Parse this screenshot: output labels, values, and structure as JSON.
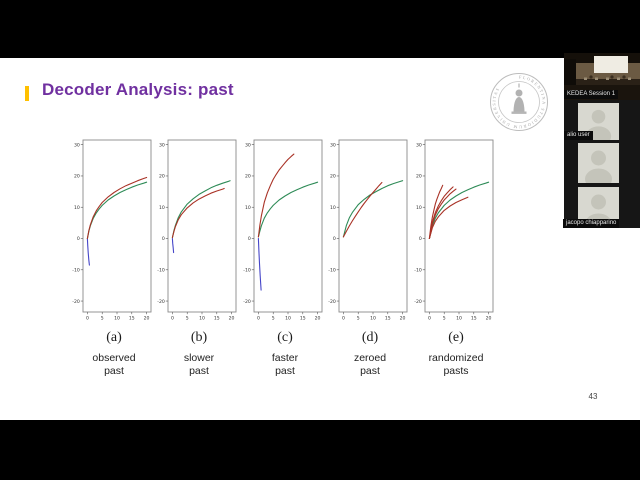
{
  "slide": {
    "title": "Decoder Analysis: past",
    "title_color": "#7030a0",
    "accent_color": "#ffc000",
    "page_number": "43",
    "seal_text": "FLORENTINA STUDIORUM UNIVERSITAS"
  },
  "sidebar": {
    "main_video_label": "KEDEA Session 1",
    "participants": [
      {
        "name": "alio user"
      },
      {
        "name": ""
      },
      {
        "name": "jacopo chiapparino"
      }
    ]
  },
  "chart_data": [
    {
      "type": "line",
      "label": "(a)",
      "caption_line1": "observed",
      "caption_line2": "past",
      "xlim": [
        0,
        20
      ],
      "ylim": [
        -20,
        30
      ],
      "xticks": [
        0,
        5,
        10,
        15,
        20
      ],
      "yticks": [
        30,
        20,
        10,
        0,
        -10,
        -20
      ],
      "series": [
        {
          "name": "blue",
          "color": "#4545c8",
          "points": [
            [
              0,
              0
            ],
            [
              0.1,
              -2
            ],
            [
              0.25,
              -4.5
            ],
            [
              0.45,
              -6.8
            ],
            [
              0.65,
              -8.5
            ]
          ]
        },
        {
          "name": "green",
          "color": "#2e8b57",
          "points": [
            [
              0,
              0
            ],
            [
              0.5,
              2.4
            ],
            [
              1,
              4.1
            ],
            [
              2,
              6.5
            ],
            [
              3,
              8.2
            ],
            [
              4,
              9.5
            ],
            [
              5,
              10.6
            ],
            [
              7,
              12.3
            ],
            [
              9,
              13.6
            ],
            [
              11,
              14.7
            ],
            [
              13,
              15.6
            ],
            [
              15,
              16.4
            ],
            [
              17,
              17.1
            ],
            [
              19,
              17.7
            ],
            [
              20,
              18
            ]
          ]
        },
        {
          "name": "red",
          "color": "#a93226",
          "points": [
            [
              0,
              0
            ],
            [
              0.5,
              2.6
            ],
            [
              1,
              4.4
            ],
            [
              2,
              7
            ],
            [
              3,
              8.9
            ],
            [
              4,
              10.3
            ],
            [
              5,
              11.5
            ],
            [
              7,
              13.3
            ],
            [
              9,
              14.7
            ],
            [
              11,
              15.9
            ],
            [
              13,
              16.9
            ],
            [
              15,
              17.7
            ],
            [
              17,
              18.5
            ],
            [
              19,
              19.2
            ],
            [
              20,
              19.5
            ]
          ]
        }
      ]
    },
    {
      "type": "line",
      "label": "(b)",
      "caption_line1": "slower",
      "caption_line2": "past",
      "xlim": [
        0,
        20
      ],
      "ylim": [
        -20,
        30
      ],
      "xticks": [
        0,
        5,
        10,
        15,
        20
      ],
      "yticks": [
        30,
        20,
        10,
        0,
        -10,
        -20
      ],
      "series": [
        {
          "name": "blue",
          "color": "#4545c8",
          "points": [
            [
              0,
              0
            ],
            [
              0.1,
              -1.5
            ],
            [
              0.25,
              -3
            ],
            [
              0.4,
              -4.5
            ]
          ]
        },
        {
          "name": "green",
          "color": "#2e8b57",
          "points": [
            [
              0,
              0.3
            ],
            [
              0.5,
              2.5
            ],
            [
              1,
              4.2
            ],
            [
              2,
              6.7
            ],
            [
              3,
              8.5
            ],
            [
              5,
              11
            ],
            [
              7,
              12.7
            ],
            [
              9,
              14.1
            ],
            [
              11,
              15.2
            ],
            [
              13,
              16.2
            ],
            [
              15,
              17
            ],
            [
              17,
              17.7
            ],
            [
              19,
              18.3
            ],
            [
              19.5,
              18.5
            ]
          ]
        },
        {
          "name": "red",
          "color": "#a93226",
          "points": [
            [
              0,
              0.3
            ],
            [
              0.5,
              2.2
            ],
            [
              1,
              3.8
            ],
            [
              2,
              6
            ],
            [
              3,
              7.6
            ],
            [
              5,
              9.8
            ],
            [
              7,
              11.4
            ],
            [
              9,
              12.6
            ],
            [
              11,
              13.6
            ],
            [
              13,
              14.5
            ],
            [
              15,
              15.2
            ],
            [
              17,
              15.8
            ],
            [
              17.5,
              16
            ]
          ]
        }
      ]
    },
    {
      "type": "line",
      "label": "(c)",
      "caption_line1": "faster",
      "caption_line2": "past",
      "xlim": [
        0,
        20
      ],
      "ylim": [
        -20,
        30
      ],
      "xticks": [
        0,
        5,
        10,
        15,
        20
      ],
      "yticks": [
        30,
        20,
        10,
        0,
        -10,
        -20
      ],
      "series": [
        {
          "name": "blue",
          "color": "#4545c8",
          "points": [
            [
              0,
              0
            ],
            [
              0.15,
              -4
            ],
            [
              0.35,
              -8
            ],
            [
              0.6,
              -12
            ],
            [
              0.9,
              -16.5
            ]
          ]
        },
        {
          "name": "green",
          "color": "#2e8b57",
          "points": [
            [
              0,
              0.5
            ],
            [
              0.5,
              2.4
            ],
            [
              1,
              4.1
            ],
            [
              2,
              6.5
            ],
            [
              3,
              8.2
            ],
            [
              4,
              9.5
            ],
            [
              5,
              10.6
            ],
            [
              7,
              12.3
            ],
            [
              9,
              13.6
            ],
            [
              11,
              14.7
            ],
            [
              13,
              15.6
            ],
            [
              15,
              16.4
            ],
            [
              17,
              17.1
            ],
            [
              19,
              17.7
            ],
            [
              20,
              18
            ]
          ]
        },
        {
          "name": "red",
          "color": "#a93226",
          "points": [
            [
              0,
              0.5
            ],
            [
              0.5,
              4.3
            ],
            [
              1,
              7.3
            ],
            [
              2,
              11.6
            ],
            [
              3,
              14.6
            ],
            [
              4,
              16.9
            ],
            [
              5,
              18.9
            ],
            [
              6,
              20.5
            ],
            [
              7,
              21.9
            ],
            [
              8,
              23.1
            ],
            [
              9,
              24.2
            ],
            [
              10,
              25.3
            ],
            [
              11,
              26.2
            ],
            [
              12,
              27
            ]
          ]
        }
      ]
    },
    {
      "type": "line",
      "label": "(d)",
      "caption_line1": "zeroed",
      "caption_line2": "past",
      "xlim": [
        0,
        20
      ],
      "ylim": [
        -20,
        30
      ],
      "xticks": [
        0,
        5,
        10,
        15,
        20
      ],
      "yticks": [
        30,
        20,
        10,
        0,
        -10,
        -20
      ],
      "series": [
        {
          "name": "green",
          "color": "#2e8b57",
          "points": [
            [
              0,
              0.5
            ],
            [
              1,
              4.2
            ],
            [
              2,
              6.6
            ],
            [
              3,
              8.3
            ],
            [
              5,
              10.8
            ],
            [
              7,
              12.5
            ],
            [
              9,
              13.9
            ],
            [
              11,
              15
            ],
            [
              13,
              16
            ],
            [
              15,
              16.9
            ],
            [
              17,
              17.6
            ],
            [
              19,
              18.2
            ],
            [
              20,
              18.5
            ]
          ]
        },
        {
          "name": "red",
          "color": "#a93226",
          "points": [
            [
              0,
              0.5
            ],
            [
              1,
              2.3
            ],
            [
              2,
              4
            ],
            [
              3,
              5.6
            ],
            [
              4,
              7.1
            ],
            [
              5,
              8.5
            ],
            [
              6,
              9.9
            ],
            [
              7,
              11.2
            ],
            [
              8,
              12.4
            ],
            [
              9,
              13.6
            ],
            [
              10,
              14.7
            ],
            [
              11,
              15.8
            ],
            [
              12,
              16.9
            ],
            [
              13,
              17.9
            ]
          ]
        }
      ]
    },
    {
      "type": "line",
      "label": "(e)",
      "caption_line1": "randomized",
      "caption_line2": "pasts",
      "xlim": [
        0,
        20
      ],
      "ylim": [
        -20,
        30
      ],
      "xticks": [
        0,
        5,
        10,
        15,
        20
      ],
      "yticks": [
        30,
        20,
        10,
        0,
        -10,
        -20
      ],
      "series": [
        {
          "name": "green",
          "color": "#2e8b57",
          "points": [
            [
              0,
              0
            ],
            [
              1,
              4.1
            ],
            [
              2,
              6.5
            ],
            [
              3,
              8.2
            ],
            [
              5,
              10.6
            ],
            [
              7,
              12.3
            ],
            [
              9,
              13.6
            ],
            [
              11,
              14.7
            ],
            [
              13,
              15.6
            ],
            [
              15,
              16.4
            ],
            [
              17,
              17.1
            ],
            [
              19,
              17.7
            ],
            [
              20,
              18
            ]
          ]
        },
        {
          "name": "red-1",
          "color": "#a93226",
          "points": [
            [
              0,
              0
            ],
            [
              0.5,
              4
            ],
            [
              1,
              6.9
            ],
            [
              1.5,
              9.1
            ],
            [
              2,
              11
            ],
            [
              2.5,
              12.5
            ],
            [
              3,
              13.8
            ],
            [
              3.5,
              15
            ],
            [
              4,
              16
            ],
            [
              4.5,
              17
            ]
          ]
        },
        {
          "name": "red-2",
          "color": "#a93226",
          "points": [
            [
              0,
              0
            ],
            [
              1,
              5.2
            ],
            [
              2,
              8.3
            ],
            [
              3,
              10.4
            ],
            [
              4,
              12.1
            ],
            [
              5,
              13.5
            ],
            [
              6,
              14.6
            ],
            [
              7,
              15.6
            ],
            [
              8,
              16.5
            ]
          ]
        },
        {
          "name": "red-3",
          "color": "#a93226",
          "points": [
            [
              0,
              0
            ],
            [
              1,
              4.8
            ],
            [
              2,
              7.5
            ],
            [
              3,
              9.5
            ],
            [
              4,
              11
            ],
            [
              5,
              12.3
            ],
            [
              6,
              13.3
            ],
            [
              7,
              14.3
            ],
            [
              8,
              15.1
            ],
            [
              9,
              15.8
            ]
          ]
        },
        {
          "name": "red-4",
          "color": "#a93226",
          "points": [
            [
              0,
              0
            ],
            [
              1,
              3.5
            ],
            [
              2,
              5.5
            ],
            [
              3,
              6.9
            ],
            [
              5,
              9
            ],
            [
              7,
              10.4
            ],
            [
              9,
              11.5
            ],
            [
              11,
              12.4
            ],
            [
              13,
              13.2
            ]
          ]
        }
      ]
    }
  ]
}
